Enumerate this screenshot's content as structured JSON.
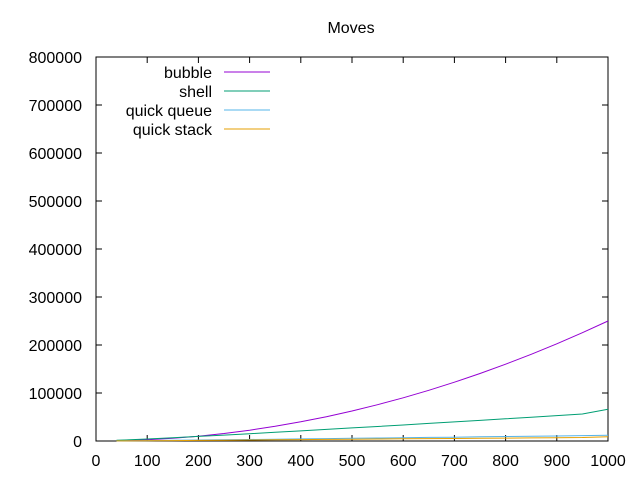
{
  "chart_data": {
    "type": "line",
    "title": "Moves",
    "xlabel": "",
    "ylabel": "",
    "xlim": [
      0,
      1000
    ],
    "ylim": [
      0,
      800000
    ],
    "xticks": [
      "0",
      "100",
      "200",
      "300",
      "400",
      "500",
      "600",
      "700",
      "800",
      "900",
      "1000"
    ],
    "yticks": [
      "0",
      "100000",
      "200000",
      "300000",
      "400000",
      "500000",
      "600000",
      "700000",
      "800000"
    ],
    "grid": false,
    "legend_position": "top-left",
    "x": [
      40,
      100,
      150,
      200,
      250,
      300,
      350,
      400,
      450,
      500,
      550,
      600,
      650,
      700,
      750,
      800,
      850,
      900,
      950,
      1000
    ],
    "series": [
      {
        "name": "bubble",
        "color": "#9400d3",
        "values": [
          400,
          2500,
          5600,
          10000,
          15600,
          22500,
          30600,
          40000,
          50600,
          62500,
          75600,
          90000,
          105600,
          122500,
          140600,
          160000,
          180600,
          202500,
          225600,
          250000
        ]
      },
      {
        "name": "shell",
        "color": "#009e73",
        "values": [
          1500,
          4200,
          6800,
          9500,
          12300,
          15200,
          18100,
          21100,
          24100,
          27200,
          30300,
          33400,
          36600,
          39800,
          43000,
          46300,
          49600,
          52900,
          56200,
          66000
        ]
      },
      {
        "name": "quick queue",
        "color": "#56b4e9",
        "values": [
          300,
          900,
          1400,
          2000,
          2600,
          3200,
          3800,
          4400,
          5000,
          5600,
          6200,
          6800,
          7400,
          8000,
          8700,
          9300,
          9900,
          10500,
          11200,
          11800
        ]
      },
      {
        "name": "quick stack",
        "color": "#e69f00",
        "values": [
          200,
          600,
          900,
          1300,
          1700,
          2100,
          2500,
          2900,
          3300,
          3700,
          4100,
          4500,
          4900,
          5300,
          5700,
          6100,
          6500,
          6900,
          7300,
          9000
        ]
      }
    ]
  }
}
